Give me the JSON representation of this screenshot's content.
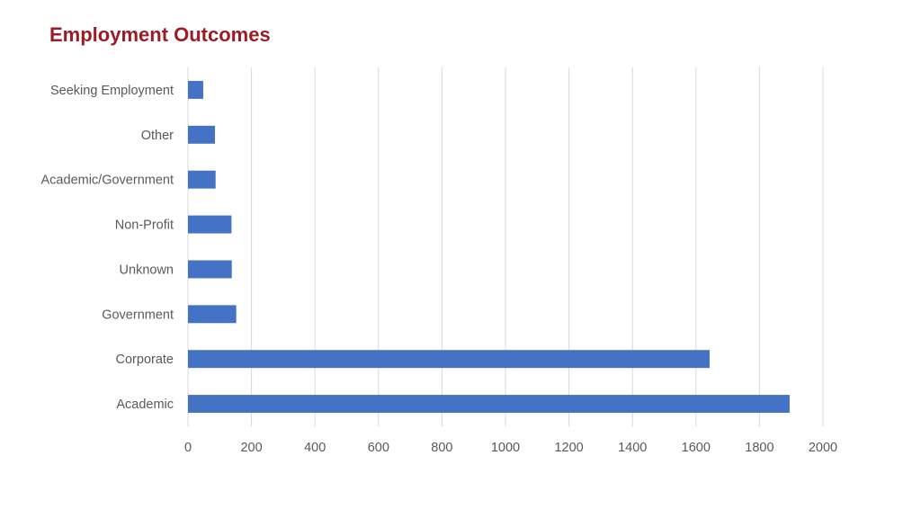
{
  "title": "Employment Outcomes",
  "chart_data": {
    "type": "bar",
    "orientation": "horizontal",
    "title": "Employment Outcomes",
    "categories": [
      "Academic",
      "Corporate",
      "Government",
      "Unknown",
      "Non-Profit",
      "Academic/Government",
      "Other",
      "Seeking Employment"
    ],
    "values": [
      1895,
      1643,
      152,
      138,
      137,
      87,
      85,
      48
    ],
    "xlim": [
      0,
      2000
    ],
    "xticks": [
      0,
      200,
      400,
      600,
      800,
      1000,
      1200,
      1400,
      1600,
      1800,
      2000
    ],
    "grid": true,
    "bar_color": "#4472c4",
    "gridline_color": "#d9d9d9",
    "label_color": "#595959",
    "title_color": "#9b1c24"
  }
}
